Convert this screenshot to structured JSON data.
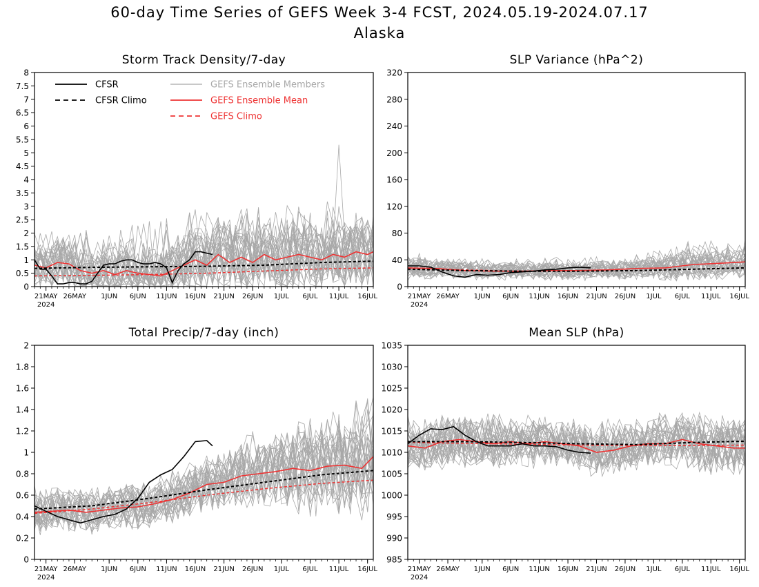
{
  "header": {
    "title_line1": "60-day Time Series of GEFS Week 3-4 FCST, 2024.05.19-2024.07.17",
    "title_line2": "Alaska"
  },
  "colors": {
    "cfsr": "#000000",
    "gefs_member": "#a8a8a8",
    "gefs_mean": "#ee3333",
    "gefs_climo": "#ee3333",
    "frame": "#000000"
  },
  "shared_x": {
    "tick_labels": [
      "21MAY",
      "26MAY",
      "1JUN",
      "6JUN",
      "11JUN",
      "16JUN",
      "21JUN",
      "26JUN",
      "1JUL",
      "6JUL",
      "11JUL",
      "16JUL"
    ],
    "tick_days": [
      2,
      7,
      13,
      18,
      23,
      28,
      33,
      38,
      43,
      48,
      53,
      58
    ],
    "year_label": "2024",
    "x_range_days": [
      0,
      59
    ],
    "x_unit": "days from 2024.05.19"
  },
  "legend": {
    "items": [
      {
        "label": "CFSR",
        "style": "solid",
        "color": "#000000"
      },
      {
        "label": "CFSR Climo",
        "style": "dashed",
        "color": "#000000"
      },
      {
        "label": "GEFS Ensemble Members",
        "style": "solid",
        "color": "#a8a8a8"
      },
      {
        "label": "GEFS Ensemble Mean",
        "style": "solid",
        "color": "#ee3333"
      },
      {
        "label": "GEFS Climo",
        "style": "dashed",
        "color": "#ee3333"
      }
    ]
  },
  "chart_data": [
    {
      "type": "line",
      "title": "Storm Track Density/7-day",
      "ylim": [
        0,
        8
      ],
      "yticks": [
        0,
        0.5,
        1,
        1.5,
        2,
        2.5,
        3,
        3.5,
        4,
        4.5,
        5,
        5.5,
        6,
        6.5,
        7,
        7.5,
        8
      ],
      "ytick_labels": [
        "0",
        "0.5",
        "1",
        "1.5",
        "2",
        "2.5",
        "3",
        "3.5",
        "4",
        "4.5",
        "5",
        "5.5",
        "6",
        "6.5",
        "7",
        "7.5",
        "8"
      ],
      "legend_position": "top-left",
      "series": [
        {
          "name": "CFSR",
          "x": [
            0,
            1,
            2,
            3,
            4,
            5,
            6,
            7,
            8,
            9,
            10,
            11,
            12,
            13,
            14,
            15,
            16,
            17,
            18,
            19,
            20,
            21,
            22,
            23,
            24,
            25,
            26,
            27,
            28,
            29,
            30,
            31
          ],
          "values": [
            1.0,
            0.65,
            0.65,
            0.4,
            0.1,
            0.1,
            0.15,
            0.15,
            0.1,
            0.1,
            0.2,
            0.5,
            0.8,
            0.85,
            0.85,
            0.95,
            1.0,
            1.0,
            0.9,
            0.85,
            0.85,
            0.9,
            0.85,
            0.7,
            0.15,
            0.6,
            0.85,
            1.0,
            1.3,
            1.3,
            1.25,
            1.2
          ]
        },
        {
          "name": "CFSR Climo",
          "x": [
            0,
            10,
            20,
            30,
            40,
            50,
            59
          ],
          "values": [
            0.68,
            0.72,
            0.74,
            0.76,
            0.8,
            0.9,
            0.95
          ]
        },
        {
          "name": "GEFS Ensemble Mean",
          "x": [
            0,
            2,
            4,
            6,
            8,
            10,
            12,
            14,
            16,
            18,
            20,
            22,
            24,
            26,
            28,
            30,
            32,
            34,
            36,
            38,
            40,
            42,
            44,
            46,
            48,
            50,
            52,
            54,
            56,
            58,
            59
          ],
          "values": [
            0.8,
            0.7,
            0.9,
            0.85,
            0.6,
            0.5,
            0.6,
            0.45,
            0.6,
            0.5,
            0.45,
            0.4,
            0.6,
            0.8,
            1.0,
            0.8,
            1.2,
            0.9,
            1.1,
            0.9,
            1.2,
            1.0,
            1.1,
            1.2,
            1.1,
            1.0,
            1.2,
            1.1,
            1.3,
            1.2,
            1.3
          ]
        },
        {
          "name": "GEFS Climo",
          "x": [
            0,
            10,
            20,
            30,
            40,
            50,
            59
          ],
          "values": [
            0.4,
            0.42,
            0.45,
            0.5,
            0.58,
            0.66,
            0.7
          ]
        }
      ],
      "member_spread": {
        "x": [
          0,
          10,
          20,
          30,
          40,
          50,
          59
        ],
        "low": [
          0.05,
          0.05,
          0.05,
          0.05,
          0.05,
          0.05,
          0.05
        ],
        "high": [
          2.0,
          2.2,
          2.5,
          3.0,
          3.0,
          3.3,
          3.0
        ],
        "peak": 5.3
      }
    },
    {
      "type": "line",
      "title": "SLP Variance (hPa^2)",
      "ylim": [
        0,
        320
      ],
      "yticks": [
        0,
        40,
        80,
        120,
        160,
        200,
        240,
        280,
        320
      ],
      "ytick_labels": [
        "0",
        "40",
        "80",
        "120",
        "160",
        "200",
        "240",
        "280",
        "320"
      ],
      "series": [
        {
          "name": "CFSR",
          "x": [
            0,
            2,
            4,
            6,
            8,
            10,
            12,
            14,
            16,
            18,
            20,
            22,
            24,
            26,
            28,
            30,
            32
          ],
          "values": [
            31,
            31,
            29,
            22,
            16,
            14,
            18,
            17,
            18,
            21,
            22,
            23,
            25,
            26,
            28,
            29,
            28
          ]
        },
        {
          "name": "CFSR Climo",
          "x": [
            0,
            10,
            20,
            30,
            40,
            50,
            59
          ],
          "values": [
            26,
            24,
            23,
            23,
            24,
            26,
            28
          ]
        },
        {
          "name": "GEFS Ensemble Mean",
          "x": [
            0,
            5,
            10,
            15,
            20,
            25,
            30,
            35,
            40,
            45,
            50,
            55,
            59
          ],
          "values": [
            28,
            27,
            24,
            23,
            23,
            24,
            24,
            25,
            27,
            28,
            33,
            35,
            37
          ]
        },
        {
          "name": "GEFS Climo",
          "x": [
            0,
            10,
            20,
            30,
            40,
            50,
            59
          ],
          "values": [
            27,
            25,
            23,
            23,
            24,
            26,
            28
          ]
        }
      ],
      "member_spread": {
        "x": [
          0,
          10,
          20,
          30,
          40,
          50,
          59
        ],
        "low": [
          14,
          12,
          13,
          14,
          14,
          15,
          16
        ],
        "high": [
          52,
          42,
          42,
          45,
          48,
          70,
          70
        ]
      }
    },
    {
      "type": "line",
      "title": "Total Precip/7-day (inch)",
      "ylim": [
        0,
        2
      ],
      "yticks": [
        0,
        0.2,
        0.4,
        0.6,
        0.8,
        1,
        1.2,
        1.4,
        1.6,
        1.8,
        2
      ],
      "ytick_labels": [
        "0",
        "0.2",
        "0.4",
        "0.6",
        "0.8",
        "1",
        "1.2",
        "1.4",
        "1.6",
        "1.8",
        "2"
      ],
      "series": [
        {
          "name": "CFSR",
          "x": [
            0,
            2,
            4,
            6,
            8,
            10,
            12,
            14,
            16,
            18,
            20,
            22,
            24,
            26,
            28,
            30,
            31
          ],
          "values": [
            0.5,
            0.45,
            0.4,
            0.37,
            0.34,
            0.37,
            0.4,
            0.42,
            0.47,
            0.57,
            0.72,
            0.79,
            0.84,
            0.96,
            1.1,
            1.11,
            1.06
          ]
        },
        {
          "name": "CFSR Climo",
          "x": [
            0,
            10,
            20,
            30,
            40,
            50,
            59
          ],
          "values": [
            0.47,
            0.5,
            0.57,
            0.65,
            0.72,
            0.79,
            0.83
          ]
        },
        {
          "name": "GEFS Ensemble Mean",
          "x": [
            0,
            3,
            6,
            9,
            12,
            15,
            18,
            21,
            24,
            27,
            30,
            33,
            36,
            39,
            42,
            45,
            48,
            51,
            54,
            57,
            59
          ],
          "values": [
            0.44,
            0.45,
            0.46,
            0.44,
            0.46,
            0.48,
            0.49,
            0.52,
            0.56,
            0.62,
            0.7,
            0.72,
            0.78,
            0.8,
            0.82,
            0.85,
            0.83,
            0.87,
            0.88,
            0.85,
            0.96
          ]
        },
        {
          "name": "GEFS Climo",
          "x": [
            0,
            10,
            20,
            30,
            40,
            50,
            59
          ],
          "values": [
            0.43,
            0.47,
            0.53,
            0.6,
            0.66,
            0.71,
            0.74
          ]
        }
      ],
      "member_spread": {
        "x": [
          0,
          10,
          20,
          30,
          40,
          50,
          59
        ],
        "low": [
          0.25,
          0.2,
          0.3,
          0.45,
          0.5,
          0.45,
          0.45
        ],
        "high": [
          0.7,
          0.65,
          0.75,
          1.0,
          1.25,
          1.4,
          1.55
        ]
      }
    },
    {
      "type": "line",
      "title": "Mean SLP (hPa)",
      "ylim": [
        985,
        1035
      ],
      "yticks": [
        985,
        990,
        995,
        1000,
        1005,
        1010,
        1015,
        1020,
        1025,
        1030,
        1035
      ],
      "ytick_labels": [
        "985",
        "990",
        "995",
        "1000",
        "1005",
        "1010",
        "1015",
        "1020",
        "1025",
        "1030",
        "1035"
      ],
      "series": [
        {
          "name": "CFSR",
          "x": [
            0,
            2,
            4,
            6,
            8,
            10,
            12,
            14,
            16,
            18,
            20,
            22,
            24,
            26,
            28,
            30,
            32
          ],
          "values": [
            1012,
            1014,
            1015.5,
            1015.3,
            1016,
            1014,
            1012.5,
            1011.5,
            1011.5,
            1011.5,
            1012,
            1011.5,
            1011.5,
            1011.3,
            1010.5,
            1010,
            1009.8
          ]
        },
        {
          "name": "CFSR Climo",
          "x": [
            0,
            10,
            20,
            30,
            40,
            50,
            59
          ],
          "values": [
            1012.5,
            1012.5,
            1012.3,
            1012,
            1011.8,
            1012.3,
            1012.6
          ]
        },
        {
          "name": "GEFS Ensemble Mean",
          "x": [
            0,
            3,
            6,
            9,
            12,
            15,
            18,
            21,
            24,
            27,
            30,
            33,
            36,
            39,
            42,
            45,
            48,
            51,
            54,
            57,
            59
          ],
          "values": [
            1011.5,
            1011,
            1012.5,
            1013,
            1012.5,
            1012,
            1012.5,
            1012,
            1012.5,
            1012,
            1011.5,
            1010,
            1010.5,
            1011.5,
            1012,
            1012,
            1013,
            1012,
            1011.5,
            1011,
            1011
          ]
        },
        {
          "name": "GEFS Climo",
          "x": [
            0,
            10,
            20,
            30,
            40,
            50,
            59
          ],
          "values": [
            1012.3,
            1012.1,
            1011.9,
            1011.7,
            1011.6,
            1011.6,
            1011.7
          ]
        }
      ],
      "member_spread": {
        "x": [
          0,
          10,
          20,
          30,
          40,
          50,
          59
        ],
        "low": [
          1005.5,
          1006,
          1006.5,
          1006,
          1006,
          1004.5,
          1003
        ],
        "high": [
          1019,
          1020,
          1019,
          1018.5,
          1019,
          1019.5,
          1018.5
        ]
      }
    }
  ]
}
